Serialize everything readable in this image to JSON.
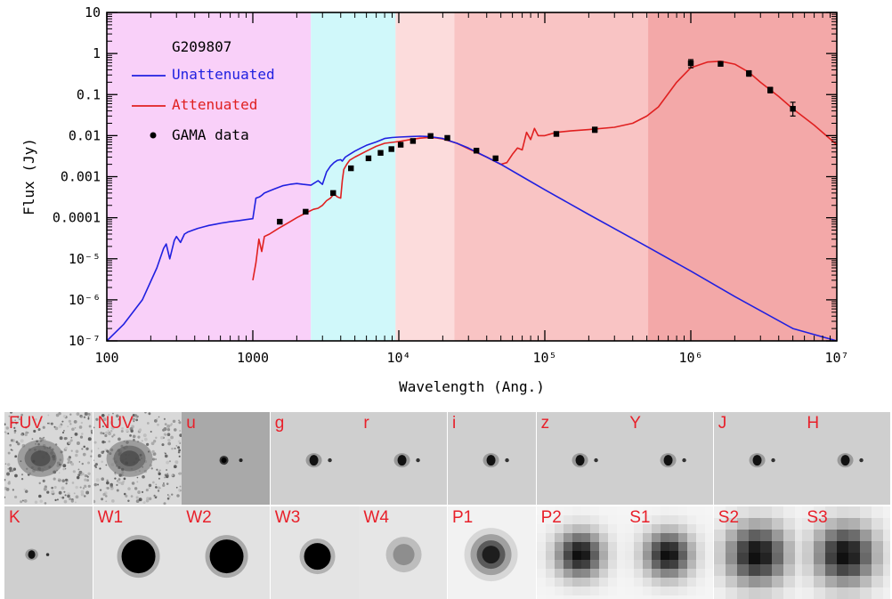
{
  "chart_data": {
    "type": "line",
    "title": "G209807",
    "xlabel": "Wavelength (Ang.)",
    "ylabel": "Flux (Jy)",
    "xscale": "log",
    "yscale": "log",
    "xlim": [
      100,
      10000000
    ],
    "ylim": [
      1e-07,
      10
    ],
    "x_tick_values": [
      100,
      1000,
      10000,
      100000,
      1000000,
      10000000
    ],
    "x_tick_labels": [
      "100",
      "1000",
      "10⁴",
      "10⁵",
      "10⁶",
      "10⁷"
    ],
    "y_tick_values": [
      10,
      1,
      0.1,
      0.01,
      0.001,
      0.0001,
      1e-05,
      1e-06,
      1e-07
    ],
    "y_tick_labels": [
      "10",
      "1",
      "0.1",
      "0.01",
      "0.001",
      "0.0001",
      "10⁻⁵",
      "10⁻⁶",
      "10⁻⁷"
    ],
    "legend": {
      "position": "top-left",
      "entries": [
        {
          "label": "Unattenuated",
          "color": "#2020e0",
          "kind": "line"
        },
        {
          "label": "Attenuated",
          "color": "#e02020",
          "kind": "line"
        },
        {
          "label": "GAMA data",
          "color": "#000000",
          "kind": "point"
        }
      ]
    },
    "background_bands": [
      {
        "xmin": 100,
        "xmax": 2500,
        "color": "#f9d0f9"
      },
      {
        "xmin": 2500,
        "xmax": 9500,
        "color": "#d0f8fa"
      },
      {
        "xmin": 9500,
        "xmax": 24000,
        "color": "#fcdcdc"
      },
      {
        "xmin": 24000,
        "xmax": 510000,
        "color": "#f9c4c4"
      },
      {
        "xmin": 510000,
        "xmax": 10000000,
        "color": "#f3a8a8"
      }
    ],
    "series": [
      {
        "name": "Unattenuated",
        "color": "#2020e0",
        "x": [
          100,
          130,
          175,
          220,
          245,
          255,
          270,
          290,
          300,
          320,
          340,
          360,
          390,
          420,
          460,
          500,
          560,
          620,
          700,
          800,
          900,
          1000,
          1050,
          1110,
          1150,
          1200,
          1300,
          1400,
          1500,
          1600,
          1800,
          2000,
          2200,
          2500,
          2800,
          3000,
          3200,
          3400,
          3600,
          3800,
          4000,
          4100,
          4300,
          4600,
          5000,
          5500,
          6000,
          7000,
          8000,
          9000,
          10000,
          12000,
          14000,
          16000,
          18000,
          20000,
          25000,
          30000,
          40000,
          50000,
          70000,
          100000,
          200000,
          500000,
          1000000,
          2000000,
          5000000,
          10000000
        ],
        "y": [
          1e-07,
          2.5e-07,
          1e-06,
          6e-06,
          1.8e-05,
          2.3e-05,
          1e-05,
          2.8e-05,
          3.5e-05,
          2.5e-05,
          4e-05,
          4.5e-05,
          5e-05,
          5.5e-05,
          6e-05,
          6.5e-05,
          7e-05,
          7.5e-05,
          8e-05,
          8.5e-05,
          9e-05,
          9.5e-05,
          0.0003,
          0.00032,
          0.00035,
          0.0004,
          0.00045,
          0.0005,
          0.00055,
          0.0006,
          0.00065,
          0.00068,
          0.00065,
          0.00062,
          0.0008,
          0.00065,
          0.0013,
          0.0018,
          0.0022,
          0.0025,
          0.0026,
          0.0024,
          0.003,
          0.0035,
          0.0042,
          0.005,
          0.0058,
          0.007,
          0.0085,
          0.009,
          0.0092,
          0.0095,
          0.0097,
          0.0095,
          0.009,
          0.0085,
          0.0065,
          0.005,
          0.003,
          0.002,
          0.001,
          0.00048,
          0.00012,
          2e-05,
          5e-06,
          1.2e-06,
          2e-07,
          1e-07
        ]
      },
      {
        "name": "Attenuated",
        "color": "#e02020",
        "x": [
          1000,
          1050,
          1100,
          1150,
          1200,
          1300,
          1500,
          1800,
          2000,
          2200,
          2400,
          2600,
          2800,
          3000,
          3200,
          3400,
          3600,
          3800,
          4000,
          4100,
          4200,
          4400,
          4600,
          5000,
          6000,
          7000,
          8000,
          10000,
          12000,
          14000,
          16000,
          18000,
          20000,
          25000,
          30000,
          40000,
          50000,
          55000,
          60000,
          65000,
          70000,
          75000,
          80000,
          85000,
          90000,
          100000,
          120000,
          150000,
          200000,
          300000,
          400000,
          500000,
          600000,
          800000,
          1000000,
          1300000,
          1600000,
          2000000,
          2500000,
          3000000,
          4000000,
          5000000,
          7000000,
          10000000
        ],
        "y": [
          3e-06,
          8e-06,
          3e-05,
          1.5e-05,
          3.5e-05,
          4e-05,
          5.5e-05,
          8e-05,
          0.0001,
          0.00012,
          0.00014,
          0.00016,
          0.00017,
          0.0002,
          0.00026,
          0.0003,
          0.00038,
          0.00032,
          0.0003,
          0.0008,
          0.0015,
          0.002,
          0.0025,
          0.003,
          0.0042,
          0.0055,
          0.0065,
          0.0072,
          0.008,
          0.0087,
          0.009,
          0.0088,
          0.0083,
          0.0065,
          0.0048,
          0.003,
          0.002,
          0.0022,
          0.0035,
          0.005,
          0.0045,
          0.012,
          0.008,
          0.015,
          0.01,
          0.01,
          0.012,
          0.013,
          0.014,
          0.016,
          0.02,
          0.03,
          0.05,
          0.2,
          0.45,
          0.62,
          0.65,
          0.55,
          0.35,
          0.2,
          0.09,
          0.045,
          0.018,
          0.006
        ]
      }
    ],
    "points": {
      "name": "GAMA data",
      "x": [
        1530,
        2300,
        3550,
        4700,
        6200,
        7500,
        8900,
        10300,
        12500,
        16500,
        21500,
        34000,
        46000,
        120000,
        220000,
        1000000,
        1600000,
        2500000,
        3500000,
        5000000
      ],
      "y": [
        8e-05,
        0.00014,
        0.0004,
        0.0016,
        0.0028,
        0.0038,
        0.0047,
        0.006,
        0.0074,
        0.0098,
        0.0088,
        0.0043,
        0.0028,
        0.011,
        0.014,
        0.58,
        0.56,
        0.33,
        0.13,
        0.045
      ],
      "yerr_low": [
        0,
        0,
        0,
        0,
        0,
        0,
        0,
        0,
        0,
        0,
        0,
        0,
        0,
        0,
        0.002,
        0.13,
        0.06,
        0.05,
        0.02,
        0.015
      ],
      "yerr_high": [
        0,
        0,
        0,
        0,
        0,
        0,
        0,
        0,
        0,
        0,
        0,
        0,
        0,
        0,
        0.002,
        0.13,
        0.06,
        0.05,
        0.02,
        0.02
      ]
    }
  },
  "cutouts": [
    {
      "band": "FUV",
      "style": "noisy"
    },
    {
      "band": "NUV",
      "style": "noisy"
    },
    {
      "band": "u",
      "style": "dark-bg"
    },
    {
      "band": "g",
      "style": "point"
    },
    {
      "band": "r",
      "style": "point"
    },
    {
      "band": "i",
      "style": "point"
    },
    {
      "band": "z",
      "style": "point"
    },
    {
      "band": "Y",
      "style": "point"
    },
    {
      "band": "J",
      "style": "point"
    },
    {
      "band": "H",
      "style": "point"
    },
    {
      "band": "K",
      "style": "point-small"
    },
    {
      "band": "W1",
      "style": "big-blob"
    },
    {
      "band": "W2",
      "style": "big-blob"
    },
    {
      "band": "W3",
      "style": "blob"
    },
    {
      "band": "W4",
      "style": "faint-blob"
    },
    {
      "band": "P1",
      "style": "blurry"
    },
    {
      "band": "P2",
      "style": "pixelated"
    },
    {
      "band": "S1",
      "style": "pixelated"
    },
    {
      "band": "S2",
      "style": "coarse"
    },
    {
      "band": "S3",
      "style": "coarse"
    }
  ]
}
